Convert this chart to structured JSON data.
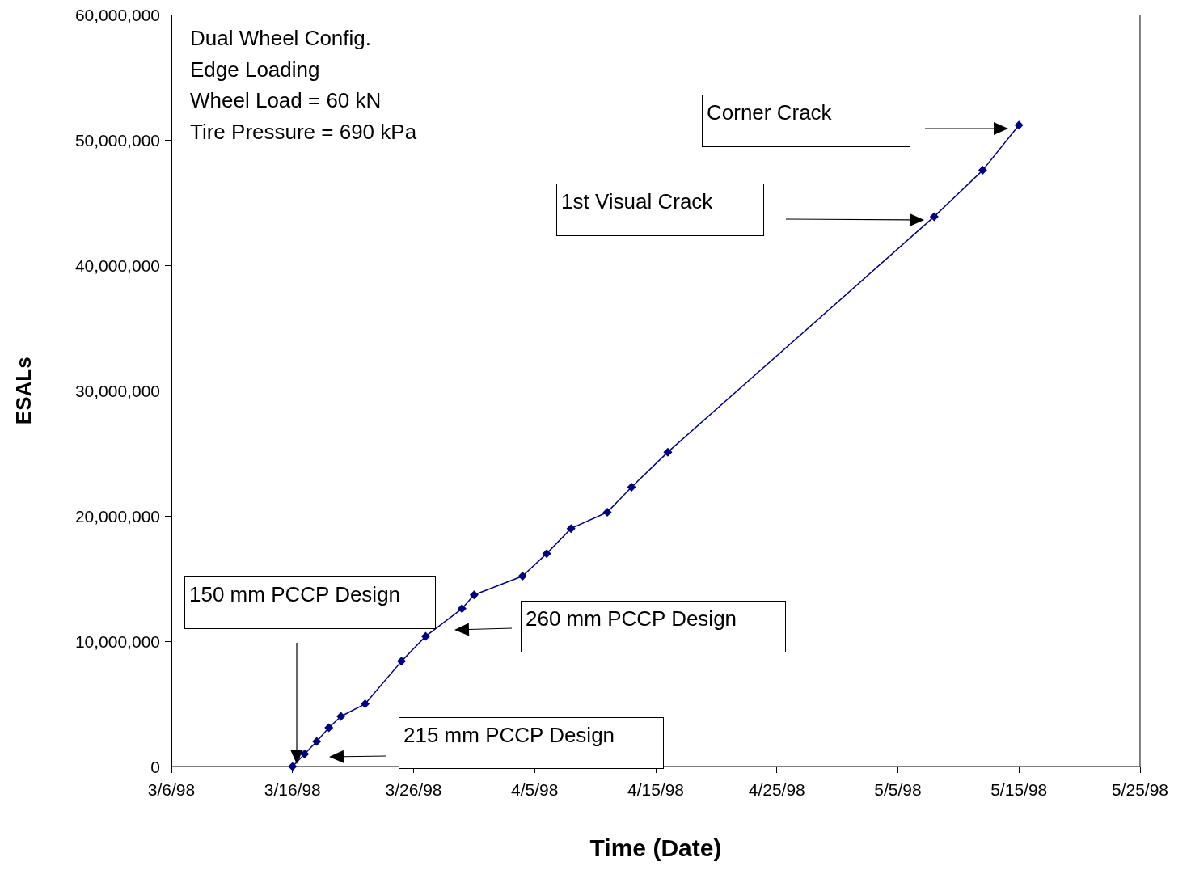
{
  "chart_data": {
    "type": "line",
    "xlabel": "Time (Date)",
    "ylabel": "ESALs",
    "x": [
      "1998-03-16",
      "1998-03-17",
      "1998-03-18",
      "1998-03-19",
      "1998-03-20",
      "1998-03-22",
      "1998-03-25",
      "1998-03-27",
      "1998-03-30",
      "1998-03-31",
      "1998-04-04",
      "1998-04-06",
      "1998-04-08",
      "1998-04-11",
      "1998-04-13",
      "1998-04-16",
      "1998-05-08",
      "1998-05-12",
      "1998-05-15"
    ],
    "series": [
      {
        "color": "#000080",
        "values": [
          0,
          1000000,
          2000000,
          3100000,
          4000000,
          5000000,
          8400000,
          10400000,
          12600000,
          13700000,
          15200000,
          17000000,
          19000000,
          20300000,
          22300000,
          25100000,
          43900000,
          47600000,
          51200000
        ]
      }
    ],
    "marker": "diamond",
    "line_style": "solid",
    "grid": false,
    "xlim": [
      "1998-03-06",
      "1998-05-25"
    ],
    "xticks": [
      {
        "value": "1998-03-06",
        "label": "3/6/98"
      },
      {
        "value": "1998-03-16",
        "label": "3/16/98"
      },
      {
        "value": "1998-03-26",
        "label": "3/26/98"
      },
      {
        "value": "1998-04-05",
        "label": "4/5/98"
      },
      {
        "value": "1998-04-15",
        "label": "4/15/98"
      },
      {
        "value": "1998-04-25",
        "label": "4/25/98"
      },
      {
        "value": "1998-05-05",
        "label": "5/5/98"
      },
      {
        "value": "1998-05-15",
        "label": "5/15/98"
      },
      {
        "value": "1998-05-25",
        "label": "5/25/98"
      }
    ],
    "ylim": [
      0,
      60000000
    ],
    "yticks": [
      {
        "value": 0,
        "label": "0"
      },
      {
        "value": 10000000,
        "label": "10,000,000"
      },
      {
        "value": 20000000,
        "label": "20,000,000"
      },
      {
        "value": 30000000,
        "label": "30,000,000"
      },
      {
        "value": 40000000,
        "label": "40,000,000"
      },
      {
        "value": 50000000,
        "label": "50,000,000"
      },
      {
        "value": 60000000,
        "label": "60,000,000"
      }
    ],
    "annotations": [
      "Dual Wheel Config.",
      "Edge Loading",
      "Wheel Load = 60 kN",
      "Tire Pressure = 690 kPa",
      "150 mm PCCP Design",
      "215 mm PCCP Design",
      "260 mm PCCP Design",
      "1st Visual Crack",
      "Corner Crack"
    ]
  }
}
